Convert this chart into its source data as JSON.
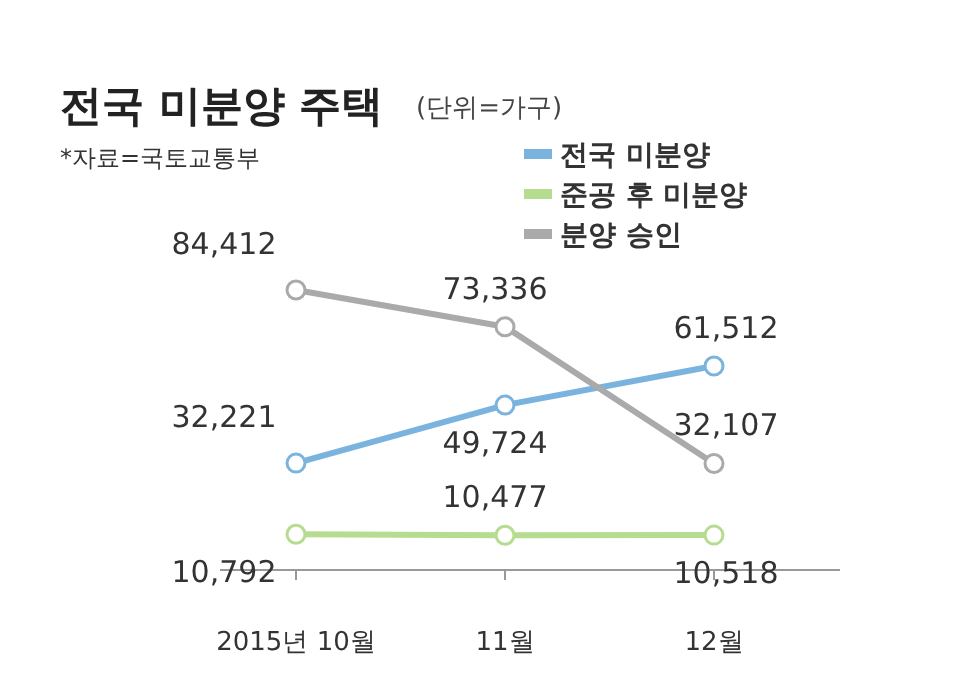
{
  "chart_data": {
    "type": "line",
    "title": "전국 미분양 주택",
    "subtitle": "(단위=가구)",
    "annotations": [
      "*자료=국토교통부"
    ],
    "categories": [
      "2015년 10월",
      "11월",
      "12월"
    ],
    "series": [
      {
        "name": "전국 미분양",
        "color": "#7ab4de",
        "values": [
          32221,
          49724,
          61512
        ],
        "value_labels": [
          "32,221",
          "49,724",
          "61,512"
        ]
      },
      {
        "name": "준공 후 미분양",
        "color": "#b5dc8f",
        "values": [
          10792,
          10477,
          10518
        ],
        "value_labels": [
          "10,792",
          "10,477",
          "10,518"
        ]
      },
      {
        "name": "분양 승인",
        "color": "#aaaaaa",
        "values": [
          84412,
          73336,
          32107
        ],
        "value_labels": [
          "84,412",
          "73,336",
          "32,107"
        ]
      }
    ],
    "marker": "circle",
    "legend": "top right"
  }
}
